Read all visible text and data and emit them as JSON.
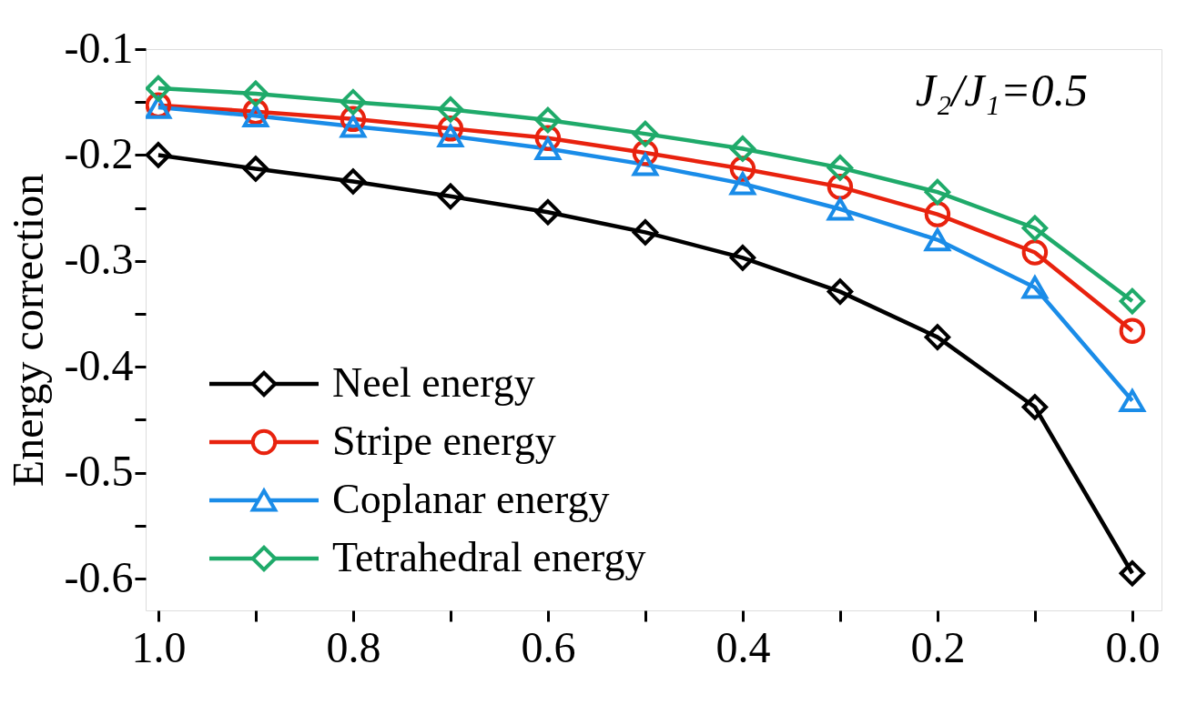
{
  "chart_data": {
    "type": "line",
    "ylabel": "Energy correction",
    "x": [
      1.0,
      0.9,
      0.8,
      0.7,
      0.6,
      0.5,
      0.4,
      0.3,
      0.2,
      0.1,
      0.0
    ],
    "series": [
      {
        "name": "Neel energy",
        "color": "#000000",
        "marker": "diamond",
        "values": [
          -0.2,
          -0.213,
          -0.225,
          -0.239,
          -0.254,
          -0.273,
          -0.297,
          -0.329,
          -0.372,
          -0.438,
          -0.595
        ]
      },
      {
        "name": "Stripe energy",
        "color": "#e8220e",
        "marker": "circle",
        "values": [
          -0.153,
          -0.159,
          -0.166,
          -0.175,
          -0.184,
          -0.198,
          -0.213,
          -0.23,
          -0.256,
          -0.292,
          -0.366
        ]
      },
      {
        "name": "Coplanar energy",
        "color": "#1a8ce8",
        "marker": "triangle",
        "values": [
          -0.155,
          -0.163,
          -0.173,
          -0.182,
          -0.194,
          -0.209,
          -0.227,
          -0.251,
          -0.28,
          -0.325,
          -0.432
        ]
      },
      {
        "name": "Tetrahedral energy",
        "color": "#1faa6a",
        "marker": "diamond",
        "values": [
          -0.137,
          -0.142,
          -0.15,
          -0.157,
          -0.167,
          -0.18,
          -0.194,
          -0.212,
          -0.235,
          -0.269,
          -0.338
        ]
      }
    ],
    "xlim": [
      1.013,
      -0.03
    ],
    "ylim": [
      -0.63,
      -0.1
    ],
    "xticks": [
      {
        "value": 1.0,
        "label": "1.0"
      },
      {
        "value": 0.9,
        "label": null
      },
      {
        "value": 0.8,
        "label": "0.8"
      },
      {
        "value": 0.7,
        "label": null
      },
      {
        "value": 0.6,
        "label": "0.6"
      },
      {
        "value": 0.5,
        "label": null
      },
      {
        "value": 0.4,
        "label": "0.4"
      },
      {
        "value": 0.3,
        "label": null
      },
      {
        "value": 0.2,
        "label": "0.2"
      },
      {
        "value": 0.1,
        "label": null
      },
      {
        "value": 0.0,
        "label": "0.0"
      }
    ],
    "yticks": [
      {
        "value": -0.1,
        "label": "-0.1"
      },
      {
        "value": -0.15,
        "label": null
      },
      {
        "value": -0.2,
        "label": "-0.2"
      },
      {
        "value": -0.25,
        "label": null
      },
      {
        "value": -0.3,
        "label": "-0.3"
      },
      {
        "value": -0.35,
        "label": null
      },
      {
        "value": -0.4,
        "label": "-0.4"
      },
      {
        "value": -0.45,
        "label": null
      },
      {
        "value": -0.5,
        "label": "-0.5"
      },
      {
        "value": -0.55,
        "label": null
      },
      {
        "value": -0.6,
        "label": "-0.6"
      }
    ],
    "annotations": [
      "J₂/J₁=0.5"
    ],
    "legend": "bottom left",
    "grid": false,
    "line_style": "solid"
  }
}
